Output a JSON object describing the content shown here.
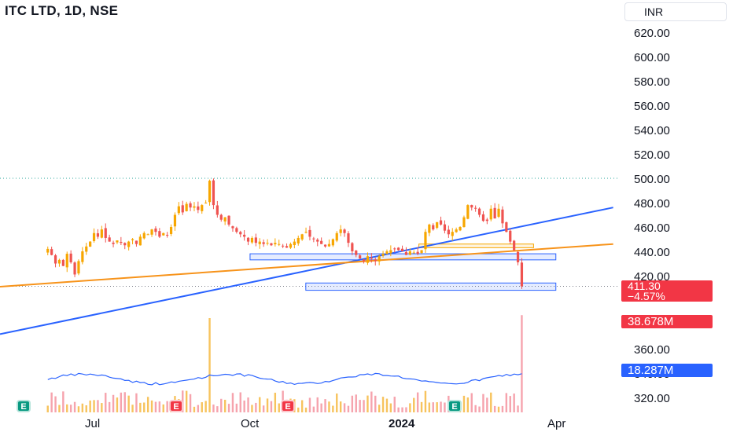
{
  "header": {
    "title": "ITC LTD, 1D, NSE",
    "currency": "INR"
  },
  "price_axis": {
    "ticks": [
      "620.00",
      "600.00",
      "580.00",
      "560.00",
      "540.00",
      "520.00",
      "500.00",
      "480.00",
      "460.00",
      "440.00",
      "420.00",
      "360.00",
      "340.00",
      "320.00"
    ]
  },
  "time_axis": {
    "ticks": [
      "Jul",
      "Oct",
      "2024",
      "Apr"
    ]
  },
  "badges": {
    "last_price": "411.30",
    "last_change": "−4.57%",
    "volume_value": "38.678M",
    "volume_ma": "18.287M"
  },
  "earnings_markers": [
    {
      "label": "E",
      "color": "#089981"
    },
    {
      "label": "E",
      "color": "#f23645"
    },
    {
      "label": "E",
      "color": "#f23645"
    },
    {
      "label": "E",
      "color": "#089981"
    }
  ],
  "colors": {
    "up": "#26a69a",
    "down": "#ef5350",
    "candle_up": "#f7a600",
    "candle_down": "#ef5350",
    "trend_blue": "#2962ff",
    "trend_orange": "#f7931a",
    "accent_red": "#f23645",
    "accent_blue": "#2962ff"
  },
  "chart_data": {
    "type": "candlestick",
    "ylim": [
      310,
      630
    ],
    "price_levels_dotted": [
      500,
      411.3
    ],
    "start_date": "2023-05-01",
    "close": [
      442,
      437,
      430,
      433,
      428,
      438,
      431,
      421,
      432,
      440,
      444,
      448,
      455,
      452,
      458,
      451,
      448,
      446,
      449,
      447,
      445,
      448,
      450,
      446,
      452,
      455,
      454,
      458,
      456,
      452,
      455,
      453,
      460,
      470,
      477,
      472,
      479,
      476,
      477,
      474,
      478,
      480,
      498,
      478,
      470,
      466,
      468,
      462,
      459,
      456,
      454,
      452,
      448,
      451,
      447,
      448,
      446,
      447,
      445,
      447,
      446,
      444,
      443,
      446,
      448,
      451,
      454,
      456,
      452,
      450,
      448,
      446,
      444,
      446,
      450,
      455,
      458,
      455,
      447,
      440,
      437,
      434,
      432,
      436,
      434,
      432,
      436,
      438,
      440,
      441,
      442,
      441,
      440,
      437,
      440,
      439,
      438,
      441,
      456,
      462,
      458,
      464,
      462,
      457,
      454,
      456,
      458,
      460,
      468,
      478,
      476,
      475,
      470,
      465,
      465,
      475,
      467,
      475,
      463,
      456,
      448,
      441,
      431,
      411.3
    ],
    "volume_ma": 18.287,
    "last_volume": 38.678,
    "trendlines": [
      {
        "color": "#2962ff",
        "points": [
          [
            "2023-04-01",
            372
          ],
          [
            "2024-04-20",
            476
          ]
        ]
      },
      {
        "color": "#f7931a",
        "points": [
          [
            "2023-04-01",
            411
          ],
          [
            "2024-04-20",
            446
          ]
        ]
      }
    ],
    "zones": [
      {
        "from": "2023-09-05",
        "to": "2024-03-15",
        "low": 433,
        "high": 438,
        "color": "#2962ff"
      },
      {
        "from": "2023-10-10",
        "to": "2024-03-15",
        "low": 408,
        "high": 414,
        "color": "#2962ff"
      },
      {
        "from": "2023-12-20",
        "to": "2024-03-01",
        "low": 443,
        "high": 446,
        "color": "#f7a600"
      }
    ]
  }
}
